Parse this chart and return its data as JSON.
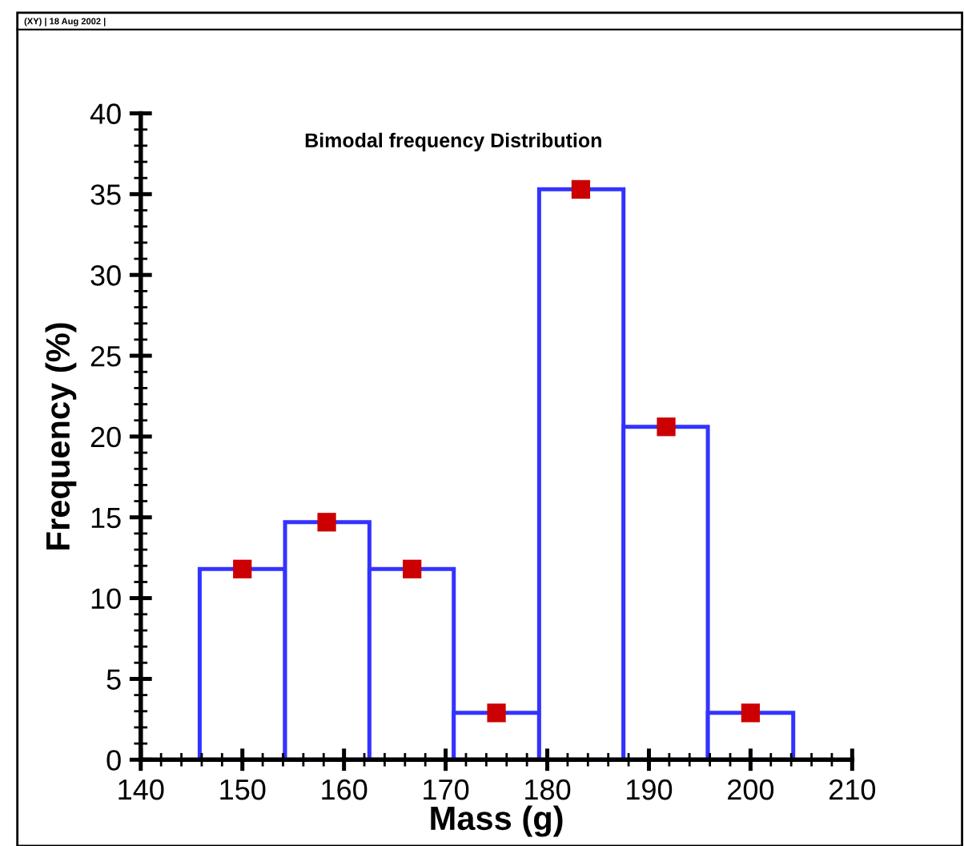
{
  "chart_data": {
    "type": "histogram",
    "title": "Bimodal frequency Distribution",
    "xlabel": "Mass (g)",
    "ylabel": "Frequency (%)",
    "annotations": [
      "(XY) | 18 Aug 2002 |"
    ],
    "bins": [
      145.8,
      154.2,
      162.5,
      170.8,
      179.2,
      187.5,
      195.8,
      204.2
    ],
    "values": [
      11.8,
      14.7,
      11.8,
      2.9,
      35.3,
      20.6,
      2.9
    ],
    "color": "#3333ff",
    "series": [
      {
        "type": "scatter",
        "color": "#cc0000",
        "marker": "square",
        "x": [
          150.0,
          158.3,
          166.7,
          175.0,
          183.3,
          191.7,
          200.0
        ],
        "values": [
          11.8,
          14.7,
          11.8,
          2.9,
          35.3,
          20.6,
          2.9
        ]
      }
    ],
    "xlim": [
      140,
      210
    ],
    "xticks": [
      140,
      150,
      160,
      170,
      180,
      190,
      200,
      210
    ],
    "ylim": [
      0,
      40
    ],
    "yticks": [
      0,
      5,
      10,
      15,
      20,
      25,
      30,
      35,
      40
    ],
    "grid": false,
    "legend": false
  }
}
